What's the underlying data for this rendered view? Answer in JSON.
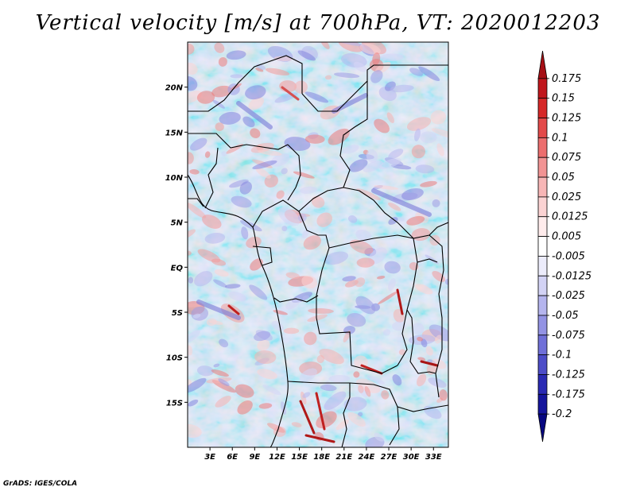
{
  "title": "Vertical velocity [m/s] at 700hPa, VT: 2020012203",
  "credit": "GrADS: IGES/COLA",
  "map": {
    "variable": "Vertical velocity",
    "units": "m/s",
    "level": "700hPa",
    "valid_time": "2020012203",
    "lon_range": [
      0,
      35
    ],
    "lat_range": [
      -20,
      25
    ],
    "lon_ticks": [
      "3E",
      "6E",
      "9E",
      "12E",
      "15E",
      "18E",
      "21E",
      "24E",
      "27E",
      "30E",
      "33E"
    ],
    "lat_ticks": [
      "20N",
      "15N",
      "10N",
      "5N",
      "EQ",
      "5S",
      "10S",
      "15S"
    ]
  },
  "colorbar": {
    "labels": [
      "0.175",
      "0.15",
      "0.125",
      "0.1",
      "0.075",
      "0.05",
      "0.025",
      "0.0125",
      "0.005",
      "-0.005",
      "-0.0125",
      "-0.025",
      "-0.05",
      "-0.075",
      "-0.1",
      "-0.125",
      "-0.175",
      "-0.2"
    ],
    "colors": [
      "#a50f15",
      "#c0161c",
      "#d62828",
      "#e34a4a",
      "#ec6e6e",
      "#f29494",
      "#f7b6b6",
      "#fbd3d3",
      "#ffecec",
      "#ffffff",
      "#ececfb",
      "#d3d3f5",
      "#b5b5ee",
      "#9393e4",
      "#7070d8",
      "#4d4dc8",
      "#2a2ab3",
      "#15159c",
      "#070780"
    ]
  }
}
